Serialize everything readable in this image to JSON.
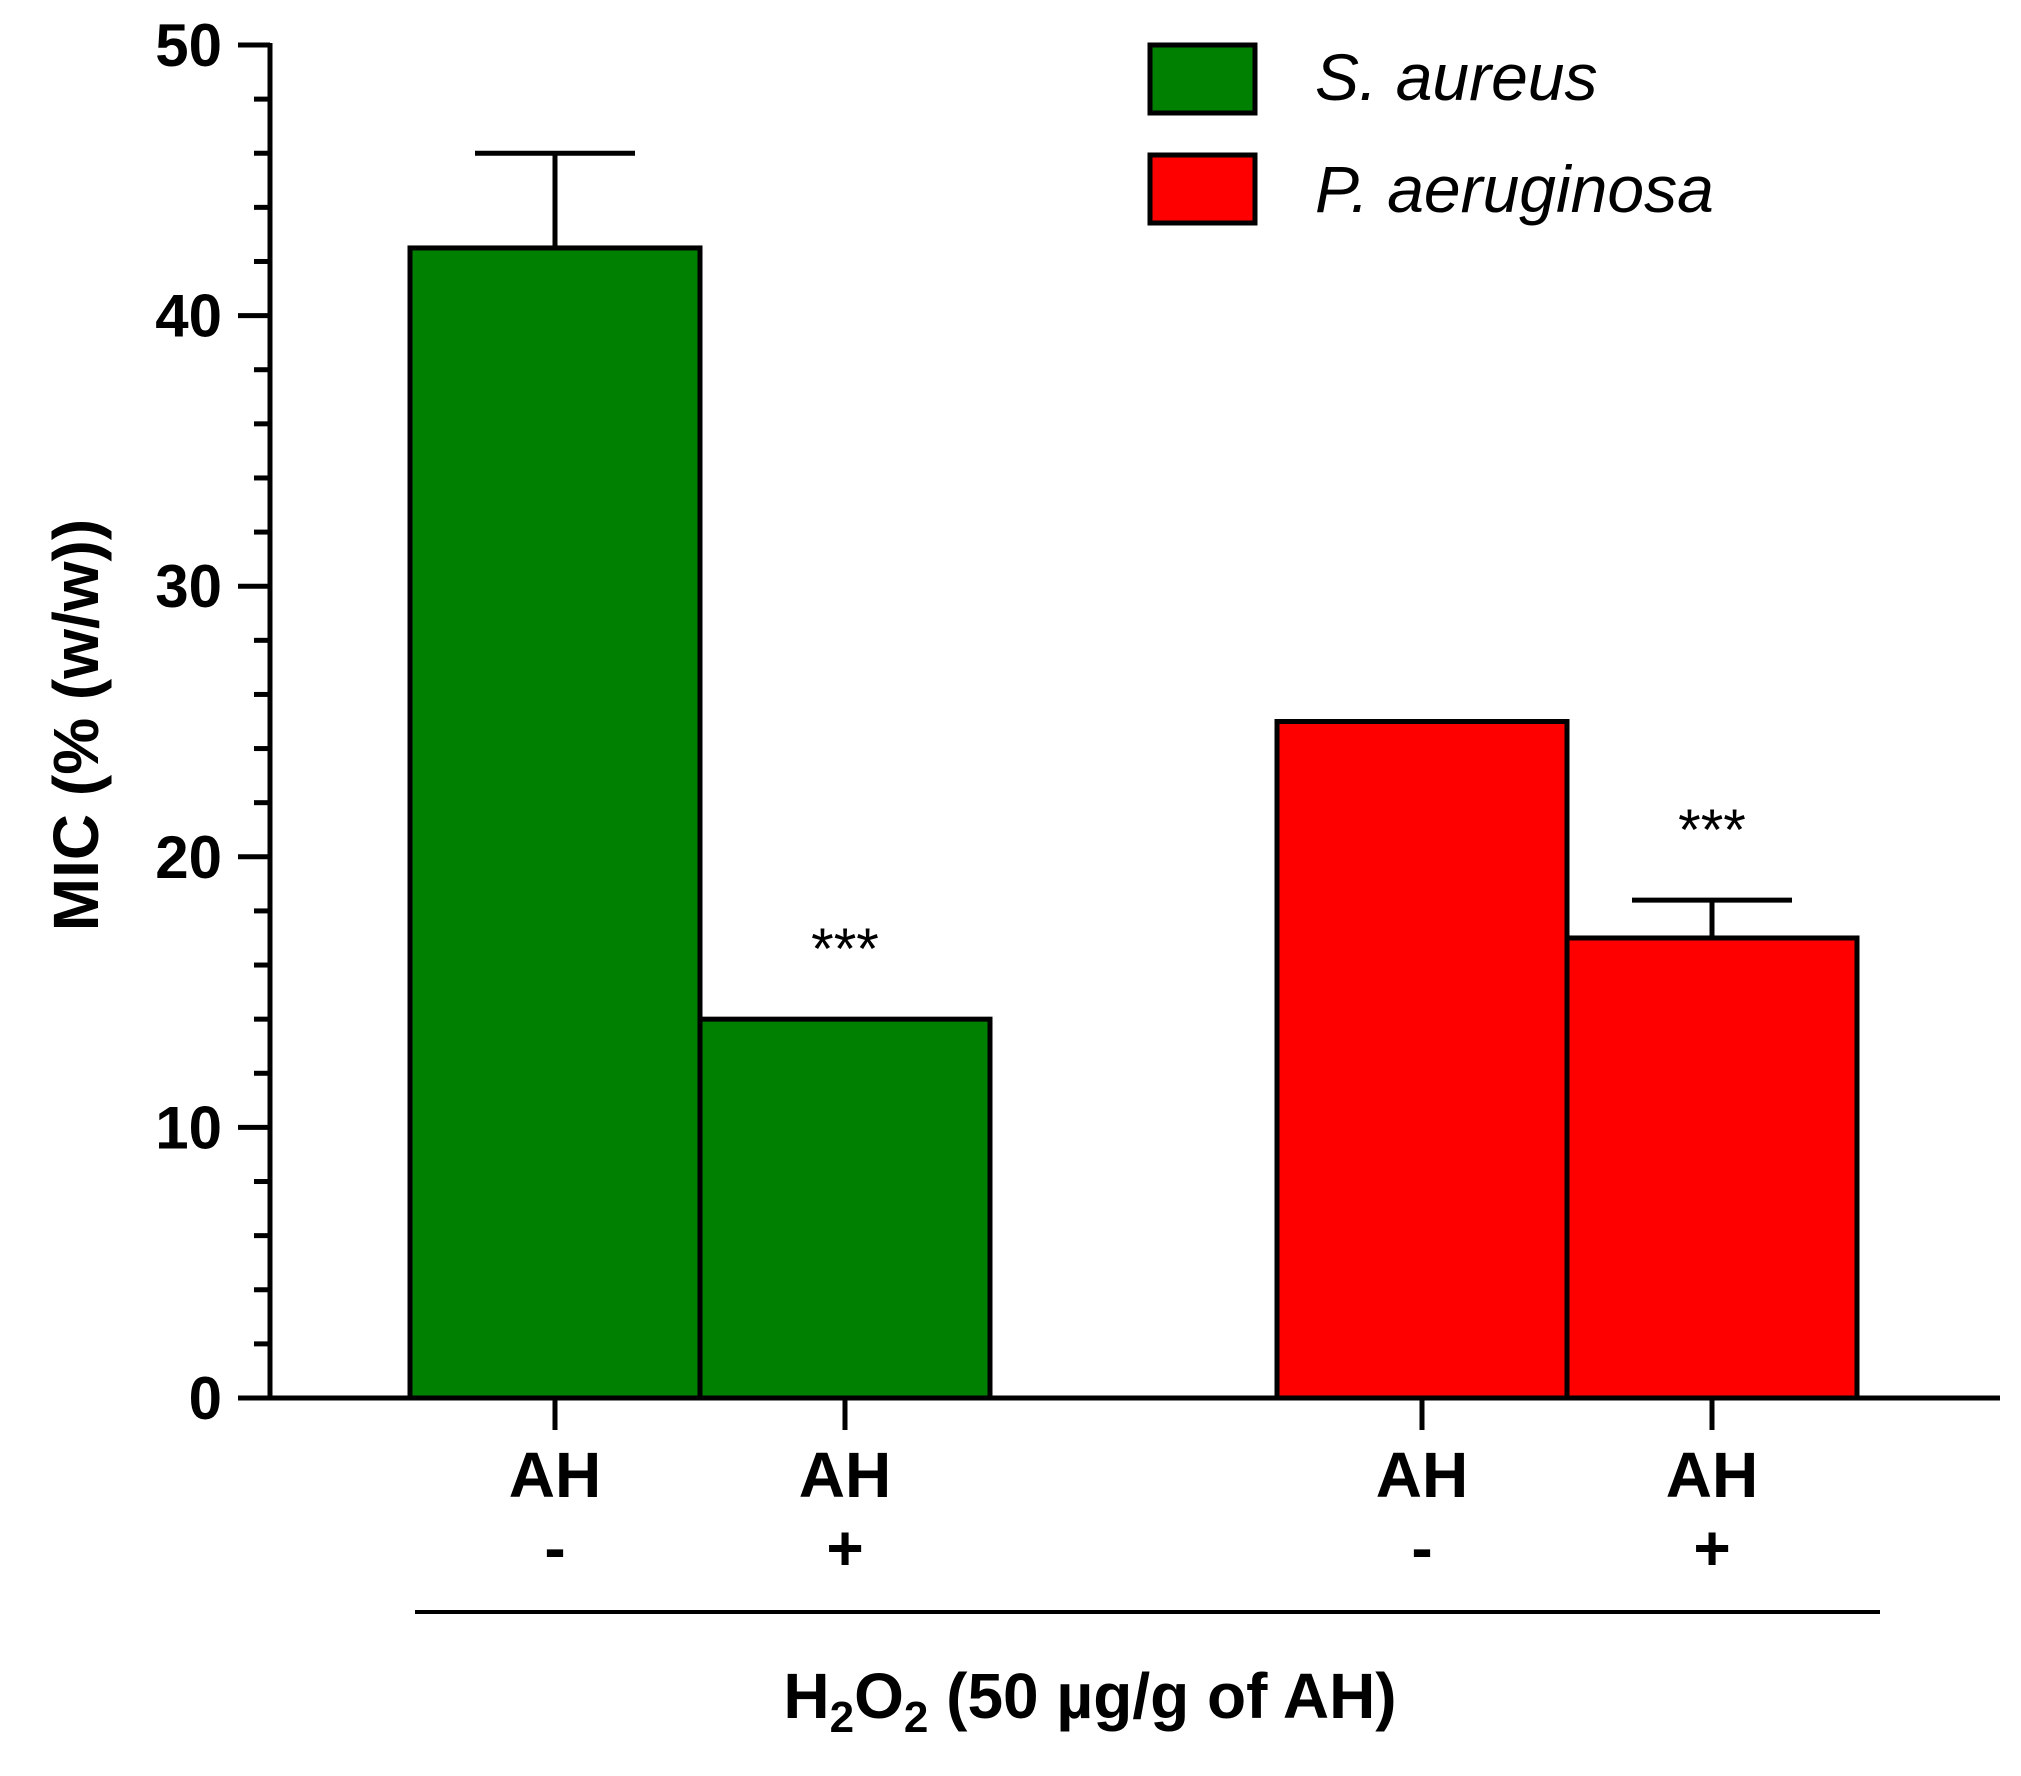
{
  "chart_data": {
    "type": "bar",
    "ylabel": "MIC (% (w/w))",
    "xlabel": {
      "prefix": "H",
      "sub1": "2",
      "mid": "O",
      "sub2": "2",
      "suffix": " (50 µg/g of AH)"
    },
    "ylim": [
      0,
      50
    ],
    "yticks": [
      "0",
      "10",
      "20",
      "30",
      "40",
      "50"
    ],
    "legend_position": "top-right",
    "groups": [
      {
        "name": "S. aureus",
        "color": "#008000",
        "bars": [
          {
            "label": "AH",
            "sign": "-",
            "value": 42.5,
            "error": 3.5,
            "significance": ""
          },
          {
            "label": "AH",
            "sign": "+",
            "value": 14,
            "error": 0,
            "significance": "***"
          }
        ]
      },
      {
        "name": "P. aeruginosa",
        "color": "#ff0000",
        "bars": [
          {
            "label": "AH",
            "sign": "-",
            "value": 25,
            "error": 0,
            "significance": ""
          },
          {
            "label": "AH",
            "sign": "+",
            "value": 17,
            "error": 1.4,
            "significance": "***"
          }
        ]
      }
    ]
  }
}
